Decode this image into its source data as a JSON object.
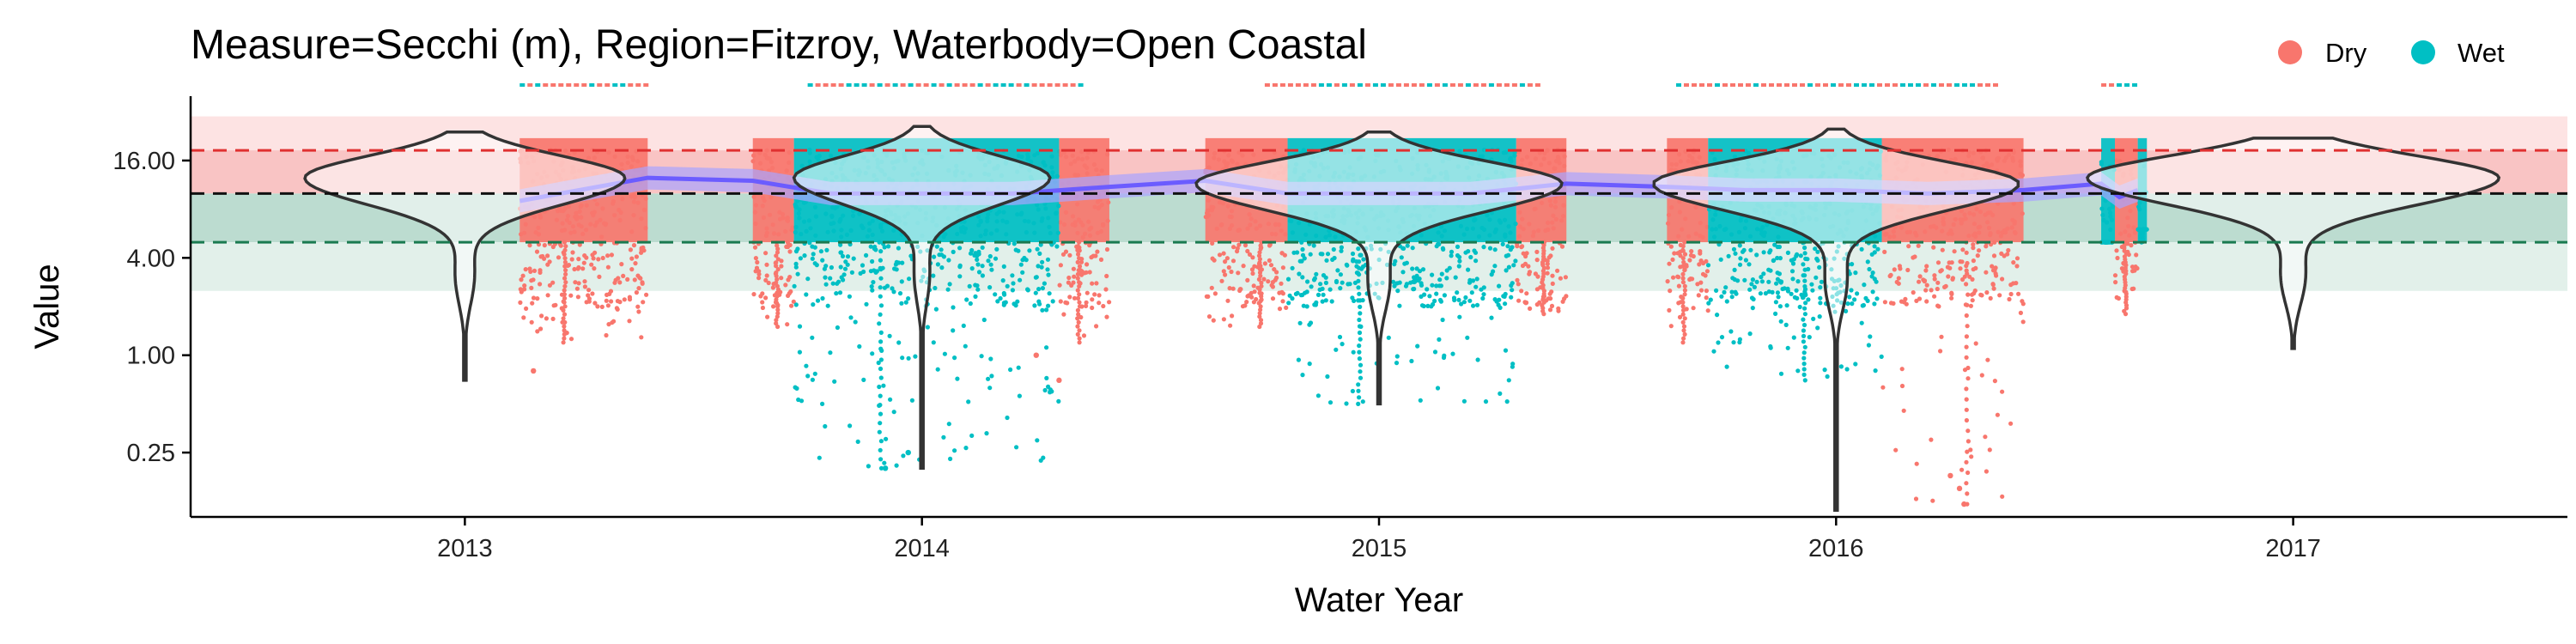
{
  "chart_data": {
    "type": "scatter",
    "title": "Measure=Secchi (m), Region=Fitzroy, Waterbody=Open Coastal",
    "xlabel": "Water Year",
    "ylabel": "Value",
    "y_scale": "log2",
    "ylim": [
      0.1,
      40
    ],
    "xlim": [
      2012.4,
      2017.6
    ],
    "x_ticks": [
      {
        "value": 2013,
        "label": "2013"
      },
      {
        "value": 2014,
        "label": "2014"
      },
      {
        "value": 2015,
        "label": "2015"
      },
      {
        "value": 2016,
        "label": "2016"
      },
      {
        "value": 2017,
        "label": "2017"
      }
    ],
    "y_ticks": [
      {
        "value": 0.25,
        "label": "0.25"
      },
      {
        "value": 1,
        "label": "1.00"
      },
      {
        "value": 4,
        "label": "4.00"
      },
      {
        "value": 16,
        "label": "16.00"
      }
    ],
    "grid": false,
    "legend": {
      "position": "top-right",
      "entries": [
        {
          "name": "Dry",
          "color": "#F8766D"
        },
        {
          "name": "Wet",
          "color": "#00BFC4"
        }
      ]
    },
    "reference_lines": [
      {
        "value": 18.5,
        "color": "#e03030",
        "style": "dashed"
      },
      {
        "value": 10.0,
        "color": "#111111",
        "style": "dashed"
      },
      {
        "value": 5.0,
        "color": "#1a7a50",
        "style": "dashed"
      }
    ],
    "reference_bands": [
      {
        "from": 18.5,
        "to": 30,
        "color": "#fde3e3"
      },
      {
        "from": 10.0,
        "to": 18.5,
        "color": "#f9c4c4"
      },
      {
        "from": 5.0,
        "to": 10.0,
        "color": "#bcdcd0"
      },
      {
        "from": 2.5,
        "to": 5.0,
        "color": "#e2f0ea"
      }
    ],
    "series": [
      {
        "name": "Dry",
        "color": "#F8766D",
        "periods": [
          {
            "x_start": 2013.12,
            "x_end": 2013.4,
            "low": 1.2,
            "high": 22,
            "median": 10
          },
          {
            "x_start": 2013.63,
            "x_end": 2013.72,
            "low": 1.5,
            "high": 22,
            "median": 10
          },
          {
            "x_start": 2014.3,
            "x_end": 2014.41,
            "low": 1.2,
            "high": 22,
            "median": 10
          },
          {
            "x_start": 2014.62,
            "x_end": 2014.8,
            "low": 1.5,
            "high": 22,
            "median": 10
          },
          {
            "x_start": 2015.3,
            "x_end": 2015.41,
            "low": 1.8,
            "high": 22,
            "median": 10
          },
          {
            "x_start": 2015.63,
            "x_end": 2015.72,
            "low": 1.2,
            "high": 22,
            "median": 10
          },
          {
            "x_start": 2016.1,
            "x_end": 2016.41,
            "low": 0.12,
            "high": 22,
            "median": 10
          },
          {
            "x_start": 2016.61,
            "x_end": 2016.66,
            "low": 1.8,
            "high": 16,
            "median": 10
          }
        ],
        "outliers": [
          {
            "x": 2013.15,
            "y": 0.8
          },
          {
            "x": 2014.25,
            "y": 1.0
          },
          {
            "x": 2014.3,
            "y": 0.7
          },
          {
            "x": 2016.25,
            "y": 0.18
          },
          {
            "x": 2016.27,
            "y": 0.15
          },
          {
            "x": 2016.28,
            "y": 0.12
          }
        ]
      },
      {
        "name": "Wet",
        "color": "#00BFC4",
        "periods": [
          {
            "x_start": 2013.72,
            "x_end": 2014.3,
            "low": 0.2,
            "high": 22,
            "median": 10
          },
          {
            "x_start": 2014.8,
            "x_end": 2015.3,
            "low": 0.5,
            "high": 22,
            "median": 10
          },
          {
            "x_start": 2015.72,
            "x_end": 2016.1,
            "low": 0.7,
            "high": 22,
            "median": 10
          },
          {
            "x_start": 2016.58,
            "x_end": 2016.61,
            "low": 5,
            "high": 16,
            "median": 10
          },
          {
            "x_start": 2016.66,
            "x_end": 2016.68,
            "low": 6,
            "high": 16,
            "median": 10
          }
        ],
        "outliers": [
          {
            "x": 2013.92,
            "y": 0.2
          },
          {
            "x": 2013.97,
            "y": 0.25
          }
        ]
      }
    ],
    "violins": [
      {
        "x": 2013,
        "min": 0.7,
        "max": 24,
        "mode": 12.5,
        "max_halfwidth_years": 0.35
      },
      {
        "x": 2014,
        "min": 0.2,
        "max": 26,
        "mode": 12.5,
        "max_halfwidth_years": 0.28
      },
      {
        "x": 2015,
        "min": 0.5,
        "max": 24,
        "mode": 11.5,
        "max_halfwidth_years": 0.4
      },
      {
        "x": 2016,
        "min": 0.11,
        "max": 25,
        "mode": 11.5,
        "max_halfwidth_years": 0.4
      },
      {
        "x": 2017,
        "min": 1.1,
        "max": 22,
        "mode": 12.5,
        "max_halfwidth_years": 0.45
      }
    ],
    "trend": {
      "name": "smoother",
      "color": "#6b5cff",
      "ci_color": "#a9a4ff",
      "points": [
        {
          "x": 2013.12,
          "y": 9.0
        },
        {
          "x": 2013.25,
          "y": 10.5
        },
        {
          "x": 2013.4,
          "y": 12.5
        },
        {
          "x": 2013.63,
          "y": 12.0
        },
        {
          "x": 2013.8,
          "y": 10.0
        },
        {
          "x": 2014.0,
          "y": 10.0
        },
        {
          "x": 2014.2,
          "y": 10.0
        },
        {
          "x": 2014.41,
          "y": 11.0
        },
        {
          "x": 2014.62,
          "y": 12.0
        },
        {
          "x": 2014.8,
          "y": 10.0
        },
        {
          "x": 2015.0,
          "y": 10.0
        },
        {
          "x": 2015.2,
          "y": 10.0
        },
        {
          "x": 2015.41,
          "y": 11.5
        },
        {
          "x": 2015.63,
          "y": 11.0
        },
        {
          "x": 2015.8,
          "y": 10.5
        },
        {
          "x": 2016.0,
          "y": 10.5
        },
        {
          "x": 2016.2,
          "y": 10.0
        },
        {
          "x": 2016.41,
          "y": 10.5
        },
        {
          "x": 2016.58,
          "y": 11.5
        },
        {
          "x": 2016.62,
          "y": 9.5
        },
        {
          "x": 2016.66,
          "y": 10.5
        }
      ]
    },
    "cropped_top_markers": [
      {
        "x_start": 2013.12,
        "x_end": 2013.4
      },
      {
        "x_start": 2013.75,
        "x_end": 2014.35
      },
      {
        "x_start": 2014.75,
        "x_end": 2015.35
      },
      {
        "x_start": 2015.65,
        "x_end": 2016.35
      },
      {
        "x_start": 2016.58,
        "x_end": 2016.66
      }
    ]
  }
}
